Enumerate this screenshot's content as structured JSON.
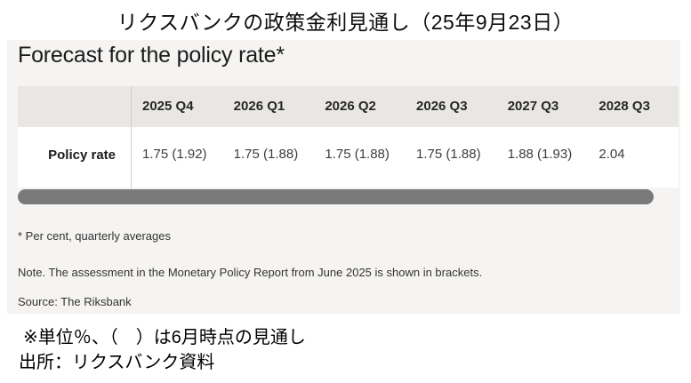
{
  "page_title": "リクスバンクの政策金利見通し（25年9月23日）",
  "panel": {
    "heading": "Forecast for the policy rate*",
    "table": {
      "row_label": "Policy rate",
      "columns": [
        "2025 Q4",
        "2026 Q1",
        "2026 Q2",
        "2026 Q3",
        "2027 Q3",
        "2028 Q3"
      ],
      "values": [
        "1.75 (1.92)",
        "1.75 (1.88)",
        "1.75 (1.88)",
        "1.75 (1.88)",
        "1.88 (1.93)",
        "2.04"
      ]
    },
    "notes": {
      "footnote": "* Per cent, quarterly averages",
      "assessment": "Note. The assessment in the Monetary Policy Report from June 2025 is shown in brackets.",
      "source": "Source: The Riksbank"
    }
  },
  "footer": {
    "unit_note": "※単位％、（　）は6月時点の見通し",
    "source_note": "出所：リクスバンク資料"
  },
  "colors": {
    "panel_background": "#f5f4f2",
    "table_header_background": "#e9e7e4",
    "table_row_background": "#ffffff",
    "column_divider": "#cfcdca",
    "scrollbar_thumb": "#7a7a7a",
    "heading_text": "#1b1b1b",
    "note_text": "#333333"
  },
  "chart_data": {
    "type": "table",
    "title": "Forecast for the policy rate*",
    "categories": [
      "2025 Q4",
      "2026 Q1",
      "2026 Q2",
      "2026 Q3",
      "2027 Q3",
      "2028 Q3"
    ],
    "series": [
      {
        "name": "Policy rate",
        "values": [
          1.75,
          1.75,
          1.75,
          1.75,
          1.88,
          2.04
        ]
      },
      {
        "name": "Policy rate (June 2025 Monetary Policy Report, in brackets)",
        "values": [
          1.92,
          1.88,
          1.88,
          1.88,
          1.93,
          null
        ]
      }
    ],
    "unit": "Per cent, quarterly averages",
    "source": "The Riksbank"
  }
}
